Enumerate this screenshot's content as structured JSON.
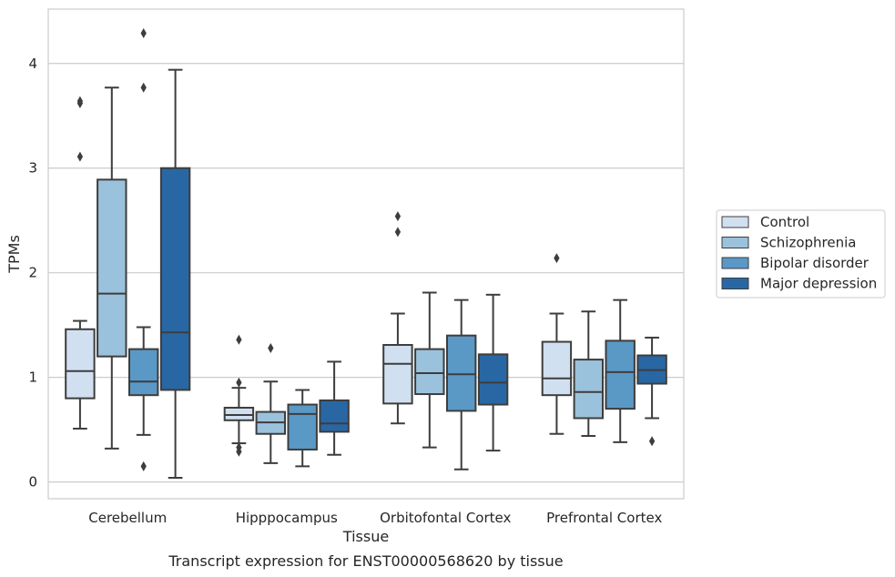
{
  "caption": "Transcript expression for ENST00000568620 by tissue",
  "chart_data": {
    "type": "box",
    "xlabel": "Tissue",
    "ylabel": "TPMs",
    "ylim": [
      -0.16,
      4.52
    ],
    "yticks": [
      0,
      1,
      2,
      3,
      4
    ],
    "grid": "horizontal",
    "legend_position": "right",
    "categories": [
      "Cerebellum",
      "Hipppocampus",
      "Orbitofontal Cortex",
      "Prefrontal Cortex"
    ],
    "series": [
      {
        "name": "Control",
        "color": "#d1e0f0",
        "boxes": [
          {
            "whislo": 0.51,
            "q1": 0.8,
            "med": 1.06,
            "q3": 1.46,
            "whishi": 1.54,
            "fliers": [
              3.62,
              3.64,
              3.11
            ]
          },
          {
            "whislo": 0.37,
            "q1": 0.59,
            "med": 0.64,
            "q3": 0.71,
            "whishi": 0.9,
            "fliers": [
              1.36,
              0.95,
              0.33,
              0.29
            ]
          },
          {
            "whislo": 0.56,
            "q1": 0.75,
            "med": 1.13,
            "q3": 1.31,
            "whishi": 1.61,
            "fliers": [
              2.54,
              2.39
            ]
          },
          {
            "whislo": 0.46,
            "q1": 0.83,
            "med": 0.99,
            "q3": 1.34,
            "whishi": 1.61,
            "fliers": [
              2.14
            ]
          }
        ]
      },
      {
        "name": "Schizophrenia",
        "color": "#9bc2dc",
        "boxes": [
          {
            "whislo": 0.32,
            "q1": 1.2,
            "med": 1.8,
            "q3": 2.89,
            "whishi": 3.77,
            "fliers": []
          },
          {
            "whislo": 0.18,
            "q1": 0.46,
            "med": 0.57,
            "q3": 0.67,
            "whishi": 0.96,
            "fliers": [
              1.28
            ]
          },
          {
            "whislo": 0.33,
            "q1": 0.84,
            "med": 1.04,
            "q3": 1.27,
            "whishi": 1.81,
            "fliers": []
          },
          {
            "whislo": 0.44,
            "q1": 0.61,
            "med": 0.86,
            "q3": 1.17,
            "whishi": 1.63,
            "fliers": []
          }
        ]
      },
      {
        "name": "Bipolar disorder",
        "color": "#5a98c6",
        "boxes": [
          {
            "whislo": 0.45,
            "q1": 0.83,
            "med": 0.96,
            "q3": 1.27,
            "whishi": 1.48,
            "fliers": [
              4.29,
              3.77,
              0.15
            ]
          },
          {
            "whislo": 0.15,
            "q1": 0.31,
            "med": 0.65,
            "q3": 0.74,
            "whishi": 0.88,
            "fliers": []
          },
          {
            "whislo": 0.12,
            "q1": 0.68,
            "med": 1.03,
            "q3": 1.4,
            "whishi": 1.74,
            "fliers": []
          },
          {
            "whislo": 0.38,
            "q1": 0.7,
            "med": 1.05,
            "q3": 1.35,
            "whishi": 1.74,
            "fliers": []
          }
        ]
      },
      {
        "name": "Major depression",
        "color": "#2967a4",
        "boxes": [
          {
            "whislo": 0.04,
            "q1": 0.88,
            "med": 1.43,
            "q3": 3.0,
            "whishi": 3.94,
            "fliers": []
          },
          {
            "whislo": 0.26,
            "q1": 0.48,
            "med": 0.56,
            "q3": 0.78,
            "whishi": 1.15,
            "fliers": []
          },
          {
            "whislo": 0.3,
            "q1": 0.74,
            "med": 0.95,
            "q3": 1.22,
            "whishi": 1.79,
            "fliers": []
          },
          {
            "whislo": 0.61,
            "q1": 0.94,
            "med": 1.07,
            "q3": 1.21,
            "whishi": 1.38,
            "fliers": [
              0.39
            ]
          }
        ]
      }
    ]
  }
}
